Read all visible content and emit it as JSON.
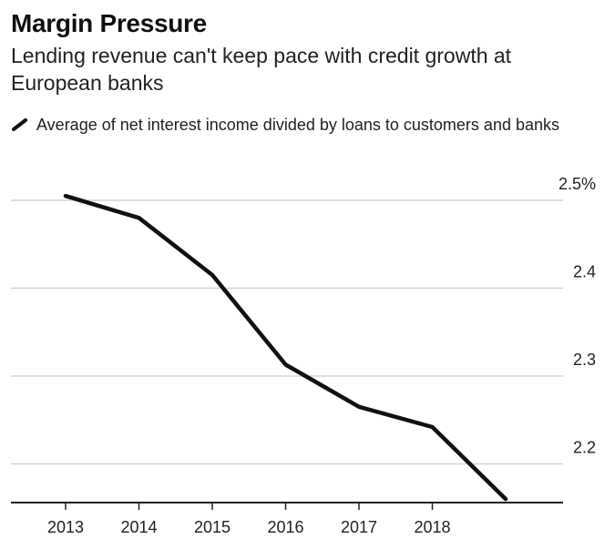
{
  "chart_data": {
    "type": "line",
    "title": "Margin Pressure",
    "subtitle": "Lending revenue can't keep pace with credit growth at European banks",
    "series": [
      {
        "name": "Average of net interest income divided by loans to customers and banks",
        "x": [
          2013,
          2014,
          2015,
          2016,
          2017,
          2018,
          2019
        ],
        "values": [
          2.505,
          2.48,
          2.415,
          2.313,
          2.265,
          2.242,
          2.16
        ]
      }
    ],
    "x_ticks": [
      "2013",
      "2014",
      "2015",
      "2016",
      "2017",
      "2018"
    ],
    "y_ticks": [
      "2.5%",
      "2.4",
      "2.3",
      "2.2"
    ],
    "y_tick_values": [
      2.5,
      2.4,
      2.3,
      2.2
    ],
    "ylim": [
      2.15,
      2.5
    ],
    "xlim": [
      2012.6,
      2019.6
    ],
    "y_axis_position": "right",
    "grid": true,
    "line_color": "#111111"
  }
}
